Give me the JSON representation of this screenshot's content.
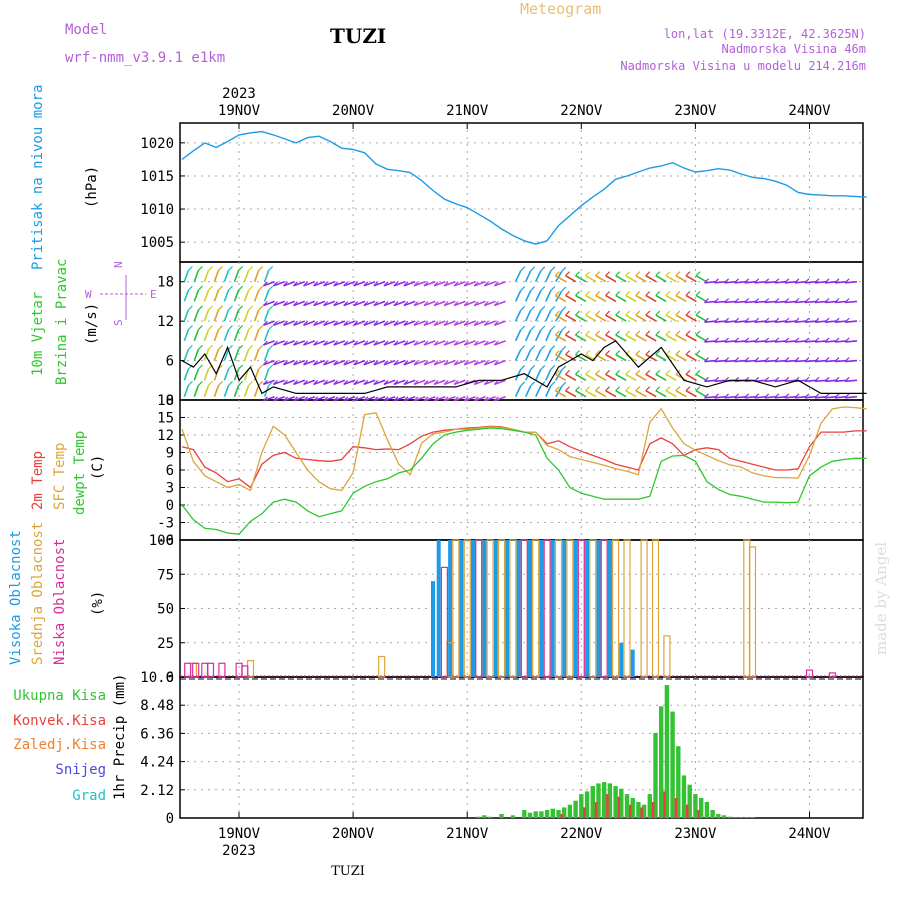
{
  "header": {
    "model_label": "Model",
    "model_name": "wrf-nmm_v3.9.1 e1km",
    "station": "TUZI",
    "product": "Meteogram",
    "coords": "lon,lat (19.3312E, 42.3625N)",
    "elevation": "Nadmorska Visina 46m",
    "model_elevation": "Nadmorska Visina u modelu 214.216m",
    "footer_station": "TUZI",
    "watermark": "made by Angel"
  },
  "colors": {
    "pressure": "#1e9be6",
    "temp2m": "#e8403c",
    "sfc": "#dba53c",
    "dewpt": "#2ec72e",
    "cloud_high": "#1e9be6",
    "cloud_mid": "#dba53c",
    "cloud_low": "#d62f9b",
    "precip_total": "#34c234",
    "precip_conv": "#e8403c",
    "freezing": "#f08030",
    "snow": "#4a4ae0",
    "hail": "#20c0c0",
    "wind_speed": "#000000",
    "wind_label": "#2ec72e",
    "purple_text": "#b45fd8",
    "title_orange": "#e8c072"
  },
  "chart_data": [
    {
      "type": "line",
      "panel": "pressure",
      "ylabel_main": "Pritisak na nivou mora",
      "ylabel_unit": "(hPa)",
      "x_start_label": "2023",
      "days": [
        "19NOV",
        "20NOV",
        "21NOV",
        "22NOV",
        "23NOV",
        "24NOV"
      ],
      "ylim": [
        1002,
        1023
      ],
      "yticks": [
        "1020",
        "1015",
        "1010",
        "1005"
      ],
      "grid": true,
      "series": [
        {
          "name": "Pritisak na nivou mora",
          "x_days": [
            0,
            0.1,
            0.2,
            0.3,
            0.4,
            0.5,
            0.6,
            0.7,
            0.8,
            0.9,
            1.0,
            1.1,
            1.2,
            1.3,
            1.4,
            1.5,
            1.6,
            1.7,
            1.8,
            1.9,
            2.0,
            2.1,
            2.2,
            2.3,
            2.4,
            2.5,
            2.6,
            2.7,
            2.8,
            2.9,
            3.0,
            3.1,
            3.2,
            3.3,
            3.4,
            3.5,
            3.6,
            3.7,
            3.8,
            3.9,
            4.0,
            4.1,
            4.2,
            4.3,
            4.4,
            4.5,
            4.6,
            4.7,
            4.8,
            4.9,
            5.0,
            5.1,
            5.2,
            5.3,
            5.4,
            5.5,
            5.6,
            5.7,
            5.8,
            5.9,
            6.0
          ],
          "values": [
            1017.5,
            1018.8,
            1020.0,
            1019.3,
            1020.2,
            1021.2,
            1021.5,
            1021.7,
            1021.2,
            1020.6,
            1020.0,
            1020.8,
            1021.0,
            1020.2,
            1019.2,
            1019.0,
            1018.5,
            1016.8,
            1016.0,
            1015.8,
            1015.5,
            1014.3,
            1012.8,
            1011.5,
            1010.8,
            1010.2,
            1009.2,
            1008.2,
            1007.0,
            1006.0,
            1005.2,
            1004.7,
            1005.2,
            1007.5,
            1009.0,
            1010.5,
            1011.8,
            1013.0,
            1014.5,
            1015.0,
            1015.6,
            1016.2,
            1016.5,
            1017.0,
            1016.2,
            1015.6,
            1015.8,
            1016.1,
            1015.9,
            1015.3,
            1014.8,
            1014.6,
            1014.2,
            1013.6,
            1012.5,
            1012.2,
            1012.1,
            1012.0,
            1012.0,
            1011.9,
            1011.8
          ]
        }
      ]
    },
    {
      "type": "line",
      "panel": "wind",
      "ylabel_main": "10m Vjetar",
      "ylabel_sub": "Brzina i Pravac",
      "ylabel_unit": "(m/s)",
      "compass": [
        "N",
        "W",
        "E",
        "S"
      ],
      "ylim": [
        0,
        21
      ],
      "yticks": [
        "18",
        "12",
        "6",
        "0"
      ],
      "grid": true,
      "series": [
        {
          "name": "Brzina",
          "x_days": [
            0,
            0.1,
            0.2,
            0.3,
            0.4,
            0.5,
            0.6,
            0.7,
            0.8,
            1.0,
            1.2,
            1.4,
            1.6,
            1.8,
            2.0,
            2.2,
            2.4,
            2.6,
            2.8,
            3.0,
            3.1,
            3.2,
            3.3,
            3.4,
            3.5,
            3.6,
            3.7,
            3.8,
            3.9,
            4.0,
            4.2,
            4.4,
            4.6,
            4.8,
            5.0,
            5.2,
            5.4,
            5.6,
            5.8,
            6.0
          ],
          "values": [
            6,
            5,
            7,
            4,
            8,
            3,
            5,
            1,
            2,
            1,
            1,
            1,
            1,
            2,
            2,
            2,
            2,
            3,
            3,
            4,
            3,
            2,
            5,
            6,
            7,
            6,
            8,
            9,
            7,
            5,
            8,
            3,
            2,
            3,
            3,
            2,
            3,
            1,
            1,
            1
          ]
        }
      ]
    },
    {
      "type": "line",
      "panel": "temperature",
      "ylabel_a": "2m Temp",
      "ylabel_b": "SFC Temp",
      "ylabel_c": "dewpt Temp",
      "ylabel_unit": "(C)",
      "ylim": [
        -6,
        18
      ],
      "yticks": [
        "18",
        "15",
        "12",
        "9",
        "6",
        "3",
        "0",
        "-3",
        "-6"
      ],
      "grid": true,
      "x_days": [
        0,
        0.1,
        0.2,
        0.3,
        0.4,
        0.5,
        0.6,
        0.7,
        0.8,
        0.9,
        1.0,
        1.1,
        1.2,
        1.3,
        1.4,
        1.5,
        1.6,
        1.7,
        1.8,
        1.9,
        2.0,
        2.1,
        2.2,
        2.3,
        2.4,
        2.5,
        2.6,
        2.7,
        2.8,
        2.9,
        3.0,
        3.1,
        3.2,
        3.3,
        3.4,
        3.5,
        3.6,
        3.7,
        3.8,
        3.9,
        4.0,
        4.1,
        4.2,
        4.3,
        4.4,
        4.5,
        4.6,
        4.7,
        4.8,
        4.9,
        5.0,
        5.1,
        5.2,
        5.3,
        5.4,
        5.5,
        5.6,
        5.7,
        5.8,
        5.9,
        6.0
      ],
      "series": [
        {
          "name": "2m Temp",
          "values": [
            10,
            9.5,
            6.5,
            5.5,
            4,
            4.5,
            3,
            7,
            8.5,
            9,
            8,
            7.8,
            7.6,
            7.5,
            7.8,
            10,
            9.8,
            9.5,
            9.6,
            9.5,
            10.5,
            11.8,
            12.5,
            12.8,
            13,
            13.2,
            13.3,
            13.5,
            13.4,
            13,
            12.5,
            12.5,
            10.5,
            11,
            10,
            9.2,
            8.5,
            7.8,
            7,
            6.5,
            6,
            10.5,
            11.5,
            10.5,
            8.5,
            9.5,
            9.8,
            9.5,
            8,
            7.5,
            7,
            6.5,
            6,
            6,
            6.2,
            10,
            12.5,
            12.5,
            12.5,
            12.7,
            12.7
          ]
        },
        {
          "name": "SFC Temp",
          "values": [
            13,
            7.5,
            5,
            4,
            3,
            3.5,
            2.5,
            9,
            13.5,
            12,
            9,
            6,
            4,
            2.8,
            2.5,
            5.5,
            15.5,
            15.8,
            11.2,
            7,
            5.2,
            10.6,
            12.2,
            12.5,
            13,
            13,
            13.2,
            13.4,
            13.3,
            13,
            12.5,
            12.5,
            10.2,
            9.5,
            8.3,
            7.8,
            7.3,
            6.8,
            6.2,
            5.8,
            5.2,
            14.2,
            16.5,
            13.2,
            10.5,
            9.4,
            8.5,
            7.6,
            6.9,
            6.5,
            5.5,
            5,
            4.7,
            4.7,
            4.6,
            8.5,
            14,
            16.5,
            16.8,
            16.7,
            16.5
          ]
        },
        {
          "name": "dewpt Temp",
          "values": [
            0,
            -2.5,
            -4,
            -4.2,
            -4.8,
            -5,
            -2.8,
            -1.5,
            0.5,
            1,
            0.5,
            -1,
            -2,
            -1.5,
            -1,
            2,
            3.2,
            4,
            4.5,
            5.5,
            6,
            8,
            10.5,
            12,
            12.5,
            12.8,
            13,
            13.2,
            13.1,
            12.8,
            12.5,
            12,
            8,
            6,
            3,
            2,
            1.5,
            1,
            1,
            1,
            1,
            1.5,
            7.5,
            8.4,
            8.5,
            7.5,
            4,
            2.7,
            1.8,
            1.5,
            1,
            0.5,
            0.5,
            0.4,
            0.5,
            5,
            6.5,
            7.5,
            7.8,
            8,
            8
          ]
        }
      ]
    },
    {
      "type": "bar",
      "panel": "clouds",
      "ylabel_a": "Visoka Oblacnost",
      "ylabel_b": "Srednja Oblacnost",
      "ylabel_c": "Niska Oblacnost",
      "ylabel_unit": "(%)",
      "ylim": [
        0,
        100
      ],
      "yticks": [
        "100",
        "75",
        "50",
        "25",
        "0"
      ],
      "grid": true,
      "series": [
        {
          "name": "Visoka Oblacnost",
          "x_days": [
            2.2,
            2.25,
            2.35,
            2.45,
            2.55,
            2.65,
            2.75,
            2.85,
            2.95,
            3.05,
            3.15,
            3.25,
            3.35,
            3.45,
            3.55,
            3.65,
            3.75,
            3.85,
            3.95
          ],
          "values": [
            70,
            100,
            100,
            100,
            100,
            100,
            100,
            100,
            100,
            100,
            100,
            100,
            100,
            100,
            100,
            100,
            100,
            25,
            20
          ]
        },
        {
          "name": "Srednja Oblacnost",
          "x_days": [
            0.1,
            0.6,
            1.75,
            2.35,
            2.4,
            2.5,
            2.6,
            2.7,
            2.8,
            2.9,
            3.0,
            3.1,
            3.2,
            3.3,
            3.4,
            3.5,
            3.6,
            3.7,
            3.8,
            3.9,
            4.05,
            4.15,
            4.25,
            4.95,
            5.0
          ],
          "values": [
            10,
            12,
            15,
            25,
            100,
            100,
            100,
            100,
            100,
            100,
            100,
            100,
            100,
            100,
            100,
            100,
            100,
            100,
            100,
            100,
            100,
            100,
            30,
            100,
            95
          ]
        },
        {
          "name": "Niska Oblacnost",
          "x_days": [
            0.05,
            0.12,
            0.2,
            0.25,
            0.35,
            0.5,
            0.55,
            2.3,
            2.6,
            3.0,
            3.2,
            3.5,
            3.7,
            5.5,
            5.7
          ],
          "values": [
            10,
            10,
            10,
            10,
            10,
            10,
            8,
            80,
            100,
            100,
            100,
            100,
            100,
            5,
            3
          ]
        }
      ]
    },
    {
      "type": "bar",
      "panel": "precipitation",
      "ylabel_unit": "1hr Precip (mm)",
      "legend": [
        "Ukupna Kisa",
        "Konvek.Kisa",
        "Zaledj.Kisa",
        "Snijeg",
        "Grad"
      ],
      "ylim": [
        0,
        10.6
      ],
      "yticks": [
        "10.6",
        "8.48",
        "6.36",
        "4.24",
        "2.12",
        "0"
      ],
      "grid": true,
      "series": [
        {
          "name": "Ukupna Kisa",
          "x_days": [
            2.6,
            2.65,
            2.7,
            2.8,
            2.9,
            3.0,
            3.05,
            3.1,
            3.15,
            3.2,
            3.25,
            3.3,
            3.35,
            3.4,
            3.45,
            3.5,
            3.55,
            3.6,
            3.65,
            3.7,
            3.75,
            3.8,
            3.85,
            3.9,
            3.95,
            4.0,
            4.05,
            4.1,
            4.15,
            4.2,
            4.25,
            4.3,
            4.35,
            4.4,
            4.45,
            4.5,
            4.55,
            4.6,
            4.65,
            4.7,
            4.75,
            4.8,
            4.85,
            4.9,
            4.95,
            5.0
          ],
          "values": [
            0.1,
            0.2,
            0.1,
            0.3,
            0.2,
            0.6,
            0.4,
            0.5,
            0.5,
            0.6,
            0.7,
            0.6,
            0.8,
            1.0,
            1.3,
            1.8,
            2.0,
            2.4,
            2.6,
            2.7,
            2.6,
            2.4,
            2.2,
            1.8,
            1.5,
            1.2,
            1.0,
            1.8,
            6.4,
            8.4,
            10.0,
            8.0,
            5.4,
            3.2,
            2.5,
            1.8,
            1.5,
            1.2,
            0.6,
            0.3,
            0.2,
            0.1,
            0.05,
            0.05,
            0.05,
            0.05
          ]
        },
        {
          "name": "Konvek.Kisa",
          "x_days": [
            3.3,
            3.5,
            3.6,
            3.7,
            3.8,
            3.9,
            4.0,
            4.1,
            4.2,
            4.3,
            4.4,
            4.5
          ],
          "values": [
            0.3,
            0.8,
            1.2,
            1.8,
            1.6,
            1.0,
            0.8,
            1.2,
            2.0,
            1.5,
            1.0,
            0.6
          ]
        }
      ]
    }
  ]
}
